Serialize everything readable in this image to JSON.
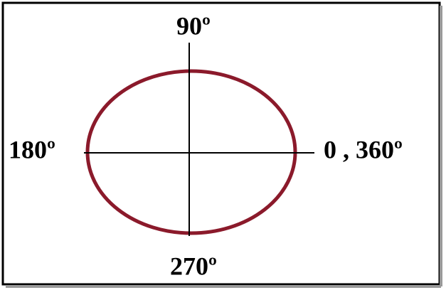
{
  "diagram": {
    "labels": {
      "top": "90º",
      "left": "180º",
      "right": "0 , 360º",
      "bottom": "270º"
    }
  }
}
